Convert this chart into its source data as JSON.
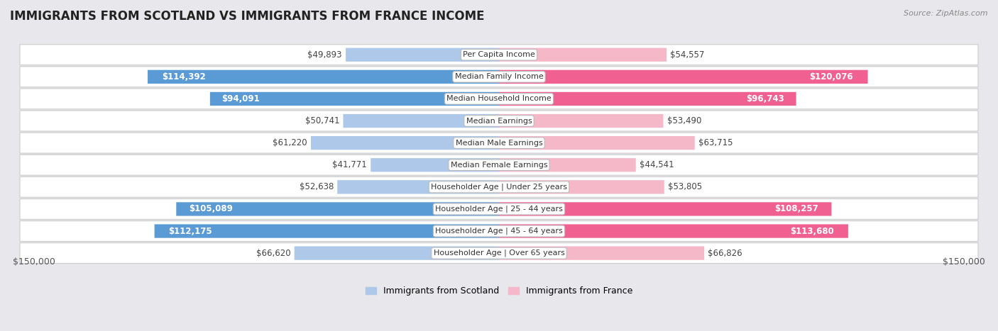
{
  "title": "IMMIGRANTS FROM SCOTLAND VS IMMIGRANTS FROM FRANCE INCOME",
  "source": "Source: ZipAtlas.com",
  "categories": [
    "Per Capita Income",
    "Median Family Income",
    "Median Household Income",
    "Median Earnings",
    "Median Male Earnings",
    "Median Female Earnings",
    "Householder Age | Under 25 years",
    "Householder Age | 25 - 44 years",
    "Householder Age | 45 - 64 years",
    "Householder Age | Over 65 years"
  ],
  "scotland_values": [
    49893,
    114392,
    94091,
    50741,
    61220,
    41771,
    52638,
    105089,
    112175,
    66620
  ],
  "france_values": [
    54557,
    120076,
    96743,
    53490,
    63715,
    44541,
    53805,
    108257,
    113680,
    66826
  ],
  "scotland_labels": [
    "$49,893",
    "$114,392",
    "$94,091",
    "$50,741",
    "$61,220",
    "$41,771",
    "$52,638",
    "$105,089",
    "$112,175",
    "$66,620"
  ],
  "france_labels": [
    "$54,557",
    "$120,076",
    "$96,743",
    "$53,490",
    "$63,715",
    "$44,541",
    "$53,805",
    "$108,257",
    "$113,680",
    "$66,826"
  ],
  "max_val": 150000,
  "scotland_color_light": "#adc8e8",
  "scotland_color_dark": "#5b9bd5",
  "france_color_light": "#f5b8c8",
  "france_color_dark": "#f06090",
  "inside_threshold": 75000,
  "legend_scotland": "Immigrants from Scotland",
  "legend_france": "Immigrants from France",
  "background_color": "#e8e8ec",
  "row_bg_color": "#ffffff",
  "row_border_color": "#cccccc",
  "bar_height": 0.62,
  "axis_label_left": "$150,000",
  "axis_label_right": "$150,000",
  "label_fontsize": 8.5,
  "category_fontsize": 8.0,
  "title_fontsize": 12
}
